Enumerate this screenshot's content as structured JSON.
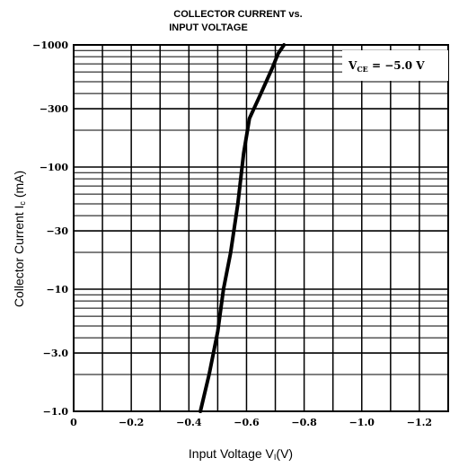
{
  "chart_data": {
    "type": "line",
    "title": "COLLECTOR CURRENT vs.",
    "subtitle": "INPUT VOLTAGE",
    "xlabel": "Input Voltage  VI(V)",
    "xlabel_main": "Input Voltage  V",
    "xlabel_sub": "I",
    "xlabel_unit": "(V)",
    "ylabel": "Collector Current  Ic (mA)",
    "ylabel_main": "Collector Current  I",
    "ylabel_sub": "c",
    "ylabel_unit": " (mA)",
    "x_scale": "linear",
    "y_scale": "log",
    "xlim": [
      0,
      -1.3
    ],
    "ylim": [
      -1.0,
      -1000
    ],
    "grid": true,
    "x_ticks": [
      {
        "value": 0,
        "label": "0"
      },
      {
        "value": -0.2,
        "label": "−0.2"
      },
      {
        "value": -0.4,
        "label": "−0.4"
      },
      {
        "value": -0.6,
        "label": "−0.6"
      },
      {
        "value": -0.8,
        "label": "−0.8"
      },
      {
        "value": -1.0,
        "label": "−1.0"
      },
      {
        "value": -1.2,
        "label": "−1.2"
      }
    ],
    "y_ticks": [
      {
        "value": -1000,
        "label": "−1000"
      },
      {
        "value": -300,
        "label": "−300"
      },
      {
        "value": -100,
        "label": "−100"
      },
      {
        "value": -30,
        "label": "−30"
      },
      {
        "value": -10,
        "label": "−10"
      },
      {
        "value": -3.0,
        "label": "−3.0"
      },
      {
        "value": -1.0,
        "label": "−1.0"
      }
    ],
    "annotation": {
      "text": "VCE = −5.0 V",
      "main": "V",
      "sub": "CE",
      "rest": " = −5.0  V",
      "position": "top-right"
    },
    "series": [
      {
        "x": [
          -0.44,
          -0.47,
          -0.5,
          -0.52,
          -0.545,
          -0.57,
          -0.59,
          -0.61,
          -0.65,
          -0.69,
          -0.71,
          -0.73
        ],
        "y": [
          -1.0,
          -2.0,
          -4.5,
          -10,
          -20,
          -50,
          -130,
          -250,
          -400,
          -650,
          -850,
          -1000
        ]
      }
    ]
  }
}
